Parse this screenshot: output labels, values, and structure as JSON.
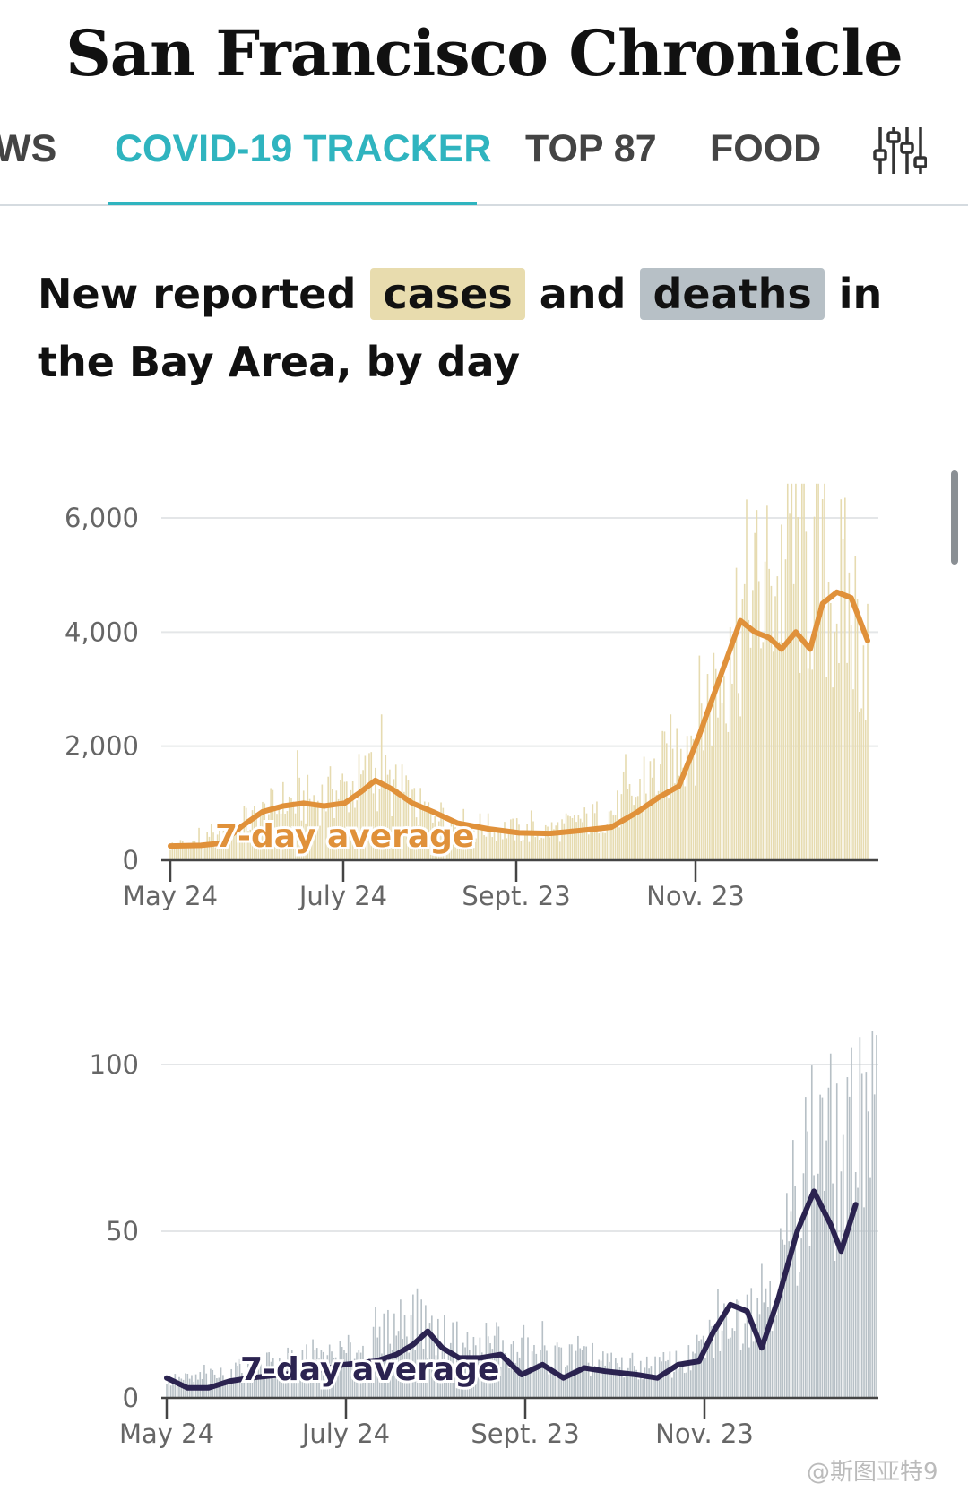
{
  "masthead": {
    "title": "San Francisco Chronicle"
  },
  "nav": {
    "items": [
      {
        "label": "WS",
        "active": false
      },
      {
        "label": "COVID-19 TRACKER",
        "active": true
      },
      {
        "label": "TOP 87",
        "active": false
      },
      {
        "label": "FOOD",
        "active": false
      }
    ],
    "filter_icon": "sliders-icon",
    "accent_color": "#2fb4bf"
  },
  "headline": {
    "part1": "New reported ",
    "cases": "cases",
    "part2": " and ",
    "deaths": "deaths",
    "part3": " in the Bay Area, by day",
    "cases_color": "#e8dcae",
    "deaths_color": "#b7c0c6"
  },
  "watermark": "@斯图亚特9",
  "chart_data": [
    {
      "type": "bar",
      "id": "cases",
      "annotation": "7-day average",
      "x_ticks": [
        "May 24",
        "July 24",
        "Sept. 23",
        "Nov. 23"
      ],
      "y_ticks": [
        "0",
        "2,000",
        "4,000",
        "6,000"
      ],
      "ylim": [
        0,
        6000
      ],
      "grid": true,
      "bar_color": "#e6dbb0",
      "line_color": "#e0913a",
      "x_start": "2020-05-24",
      "days": 245,
      "bars_anchors": [
        [
          0,
          250
        ],
        [
          20,
          350
        ],
        [
          40,
          700
        ],
        [
          55,
          1000
        ],
        [
          70,
          1050
        ],
        [
          90,
          1300
        ],
        [
          100,
          1500
        ],
        [
          120,
          900
        ],
        [
          140,
          650
        ],
        [
          160,
          550
        ],
        [
          180,
          480
        ],
        [
          200,
          650
        ],
        [
          220,
          900
        ],
        [
          230,
          1200
        ],
        [
          240,
          1600
        ],
        [
          255,
          2300
        ],
        [
          268,
          3200
        ],
        [
          278,
          4300
        ],
        [
          290,
          4600
        ],
        [
          305,
          5200
        ],
        [
          318,
          5000
        ],
        [
          330,
          4400
        ],
        [
          340,
          3800
        ]
      ],
      "line_anchors": [
        [
          0,
          250
        ],
        [
          15,
          260
        ],
        [
          25,
          300
        ],
        [
          35,
          600
        ],
        [
          45,
          850
        ],
        [
          55,
          950
        ],
        [
          65,
          1000
        ],
        [
          75,
          950
        ],
        [
          85,
          1000
        ],
        [
          93,
          1200
        ],
        [
          100,
          1400
        ],
        [
          108,
          1250
        ],
        [
          118,
          1000
        ],
        [
          128,
          850
        ],
        [
          140,
          650
        ],
        [
          155,
          550
        ],
        [
          170,
          480
        ],
        [
          185,
          470
        ],
        [
          200,
          520
        ],
        [
          215,
          580
        ],
        [
          228,
          850
        ],
        [
          238,
          1100
        ],
        [
          248,
          1300
        ],
        [
          258,
          2200
        ],
        [
          268,
          3200
        ],
        [
          278,
          4200
        ],
        [
          285,
          4000
        ],
        [
          292,
          3900
        ],
        [
          298,
          3700
        ],
        [
          305,
          4000
        ],
        [
          312,
          3700
        ],
        [
          318,
          4500
        ],
        [
          325,
          4700
        ],
        [
          332,
          4600
        ],
        [
          340,
          3850
        ]
      ]
    },
    {
      "type": "bar",
      "id": "deaths",
      "annotation": "7-day average",
      "x_ticks": [
        "May 24",
        "July 24",
        "Sept. 23",
        "Nov. 23"
      ],
      "y_ticks": [
        "0",
        "50",
        "100"
      ],
      "ylim": [
        0,
        100
      ],
      "grid": true,
      "bar_color": "#b7c0c6",
      "line_color": "#2b2350",
      "x_start": "2020-05-24",
      "days": 245,
      "bars_anchors": [
        [
          0,
          5
        ],
        [
          20,
          6
        ],
        [
          50,
          10
        ],
        [
          80,
          12
        ],
        [
          100,
          15
        ],
        [
          115,
          25
        ],
        [
          130,
          18
        ],
        [
          150,
          14
        ],
        [
          170,
          13
        ],
        [
          190,
          12
        ],
        [
          210,
          10
        ],
        [
          230,
          9
        ],
        [
          250,
          11
        ],
        [
          265,
          20
        ],
        [
          280,
          28
        ],
        [
          295,
          40
        ],
        [
          305,
          70
        ],
        [
          315,
          75
        ],
        [
          325,
          65
        ],
        [
          335,
          95
        ]
      ],
      "line_anchors": [
        [
          0,
          6
        ],
        [
          10,
          3
        ],
        [
          20,
          3
        ],
        [
          30,
          5
        ],
        [
          40,
          6
        ],
        [
          55,
          7
        ],
        [
          70,
          8
        ],
        [
          85,
          10
        ],
        [
          100,
          11
        ],
        [
          110,
          13
        ],
        [
          118,
          16
        ],
        [
          125,
          20
        ],
        [
          132,
          15
        ],
        [
          140,
          12
        ],
        [
          150,
          12
        ],
        [
          160,
          13
        ],
        [
          170,
          7
        ],
        [
          180,
          10
        ],
        [
          190,
          6
        ],
        [
          200,
          9
        ],
        [
          210,
          8
        ],
        [
          225,
          7
        ],
        [
          235,
          6
        ],
        [
          245,
          10
        ],
        [
          255,
          11
        ],
        [
          262,
          20
        ],
        [
          270,
          28
        ],
        [
          278,
          26
        ],
        [
          285,
          15
        ],
        [
          293,
          30
        ],
        [
          302,
          50
        ],
        [
          310,
          62
        ],
        [
          318,
          52
        ],
        [
          323,
          44
        ],
        [
          330,
          58
        ]
      ]
    }
  ]
}
